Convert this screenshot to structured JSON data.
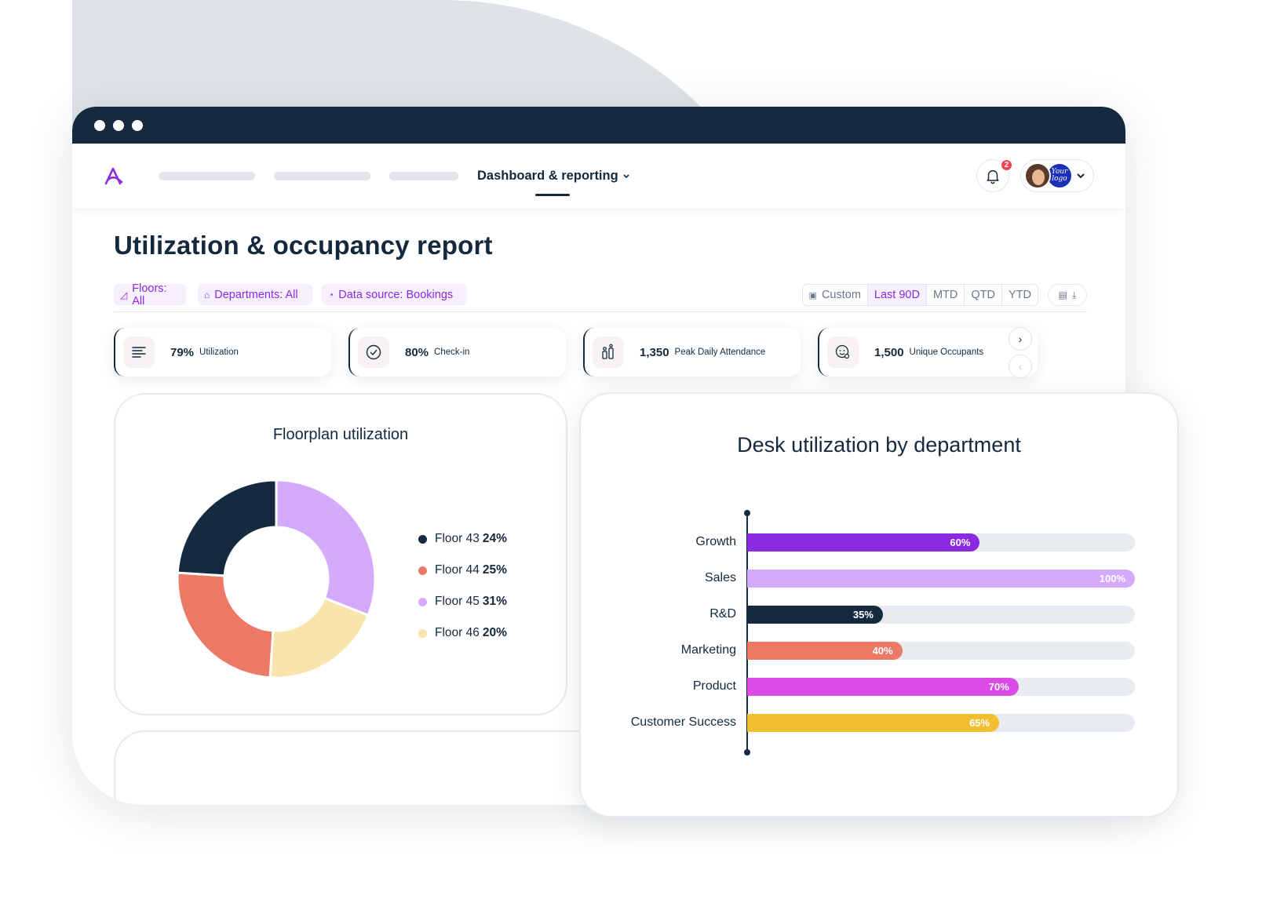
{
  "nav": {
    "active_item": "Dashboard & reporting",
    "notification_count": "2",
    "org_logo_text": "Your logo"
  },
  "page": {
    "title": "Utilization & occupancy report"
  },
  "filters": {
    "floors": "Floors: All",
    "departments": "Departments: All",
    "data_source": "Data source: Bookings"
  },
  "date_ranges": [
    "Custom",
    "Last 90D",
    "MTD",
    "QTD",
    "YTD"
  ],
  "date_range_selected": "Last 90D",
  "stats": [
    {
      "value": "79%",
      "label": "Utilization",
      "icon": "list-lines-icon"
    },
    {
      "value": "80%",
      "label": "Check-in",
      "icon": "check-circle-icon"
    },
    {
      "value": "1,350",
      "label": "Peak Daily Attendance",
      "icon": "people-bars-icon"
    },
    {
      "value": "1,500",
      "label": "Unique Occupants",
      "icon": "face-search-icon"
    }
  ],
  "floorplan": {
    "title": "Floorplan utilization",
    "legend": [
      {
        "label": "Floor 43",
        "pct": "24%",
        "color": "#152a3e"
      },
      {
        "label": "Floor 44",
        "pct": "25%",
        "color": "#ec7866"
      },
      {
        "label": "Floor 45",
        "pct": "31%",
        "color": "#d4aafa"
      },
      {
        "label": "Floor 46",
        "pct": "20%",
        "color": "#f9e4ab"
      }
    ]
  },
  "department": {
    "title": "Desk utilization by department"
  },
  "chart_data": [
    {
      "type": "pie",
      "title": "Floorplan utilization",
      "categories": [
        "Floor 43",
        "Floor 44",
        "Floor 45",
        "Floor 46"
      ],
      "values": [
        24,
        25,
        31,
        20
      ],
      "colors": [
        "#152a3e",
        "#ec7866",
        "#d4aafa",
        "#f9e4ab"
      ],
      "donut": true
    },
    {
      "type": "bar",
      "orientation": "horizontal",
      "title": "Desk utilization by department",
      "categories": [
        "Growth",
        "Sales",
        "R&D",
        "Marketing",
        "Product",
        "Customer Success"
      ],
      "values": [
        60,
        100,
        35,
        40,
        70,
        65
      ],
      "value_labels": [
        "60%",
        "100%",
        "35%",
        "40%",
        "70%",
        "65%"
      ],
      "colors": [
        "#8a2be2",
        "#d4aafa",
        "#152a3e",
        "#ec7866",
        "#dc4ae6",
        "#f2bf32"
      ],
      "xlim": [
        0,
        100
      ]
    }
  ]
}
